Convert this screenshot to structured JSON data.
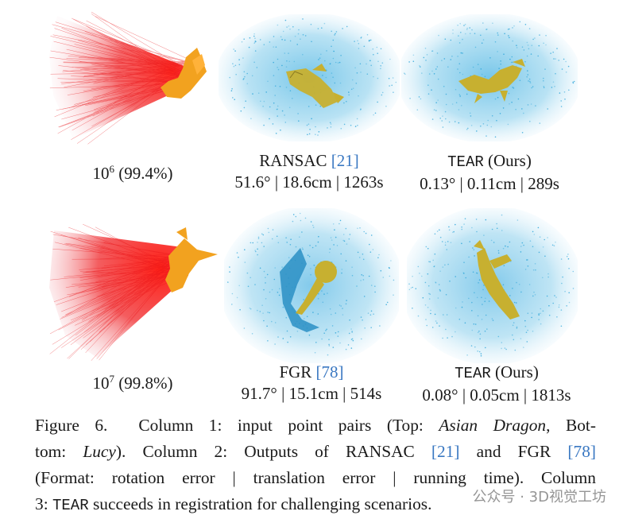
{
  "figure": {
    "rows": [
      {
        "row_id": "top",
        "scene": "Asian Dragon",
        "col1": {
          "base": "10",
          "exponent": "6",
          "outlier": "(99.4%)"
        },
        "col2": {
          "method": "RANSAC ",
          "citation": "[21]",
          "metrics": "51.6° | 18.6cm | 1263s"
        },
        "col3": {
          "method": "TEAR",
          "suffix": " (Ours)",
          "metrics": "0.13° | 0.11cm | 289s"
        }
      },
      {
        "row_id": "bottom",
        "scene": "Lucy",
        "col1": {
          "base": "10",
          "exponent": "7",
          "outlier": "(99.8%)"
        },
        "col2": {
          "method": "FGR ",
          "citation": "[78]",
          "metrics": "91.7° | 15.1cm | 514s"
        },
        "col3": {
          "method": "TEAR",
          "suffix": " (Ours)",
          "metrics": "0.08° | 0.05cm | 1813s"
        }
      }
    ],
    "caption": {
      "label": "Figure 6.",
      "l1_a": "Column 1:  input point pairs (Top: ",
      "l1_b": "Asian Dragon",
      "l1_c": ", Bot-",
      "l2_a": "tom: ",
      "l2_b": "Lucy",
      "l2_c": ").  Column 2:  Outputs of RANSAC ",
      "l2_cite1": "[21]",
      "l2_d": " and FGR ",
      "l2_cite2": "[78]",
      "l3": "(Format: rotation error | translation error | running time).  Column",
      "l4_a": "3: ",
      "l4_b": "TEAR",
      "l4_c": " succeeds in registration for challenging scenarios."
    },
    "colors": {
      "correspondence_lines": "#e8161a",
      "target_points": "#2aa3d8",
      "source_points": "#e9a92a",
      "aligned_object": "#c7b030",
      "citation": "#3a78c2"
    }
  },
  "watermark": "公众号 · 3D视觉工坊"
}
